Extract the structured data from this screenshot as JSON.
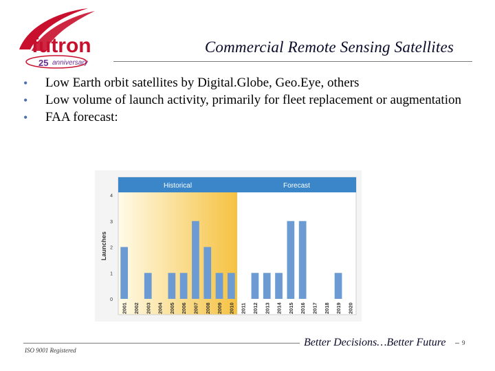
{
  "logo": {
    "name": "futron",
    "anniversary_number": "25",
    "anniversary_text": "anniversary"
  },
  "title": "Commercial Remote Sensing Satellites",
  "bullets": [
    "Low Earth orbit satellites by Digital.Globe, Geo.Eye, others",
    "Low volume of launch activity, primarily for fleet replacement or augmentation",
    "FAA forecast:"
  ],
  "chart_data": {
    "type": "bar",
    "header": {
      "historical": "Historical",
      "forecast": "Forecast"
    },
    "categories": [
      "2001",
      "2002",
      "2003",
      "2004",
      "2005",
      "2006",
      "2007",
      "2008",
      "2009",
      "2010",
      "2011",
      "2012",
      "2013",
      "2014",
      "2015",
      "2016",
      "2017",
      "2018",
      "2019",
      "2020"
    ],
    "values": [
      2,
      0,
      1,
      0,
      1,
      1,
      3,
      2,
      1,
      1,
      0,
      1,
      1,
      1,
      3,
      3,
      0,
      0,
      1,
      0
    ],
    "historical_through": "2010",
    "ylabel": "Launches",
    "ylim": [
      0,
      4
    ],
    "yticks": [
      "0",
      "1",
      "2",
      "3",
      "4"
    ],
    "grid": false,
    "colors": {
      "bar": "#6b9bd2",
      "header": "#3a86c8",
      "highlight": "#f5c242"
    }
  },
  "footer": {
    "iso": "ISO 9001 Registered",
    "tagline": "Better Decisions…Better Future",
    "page_number": "9"
  }
}
